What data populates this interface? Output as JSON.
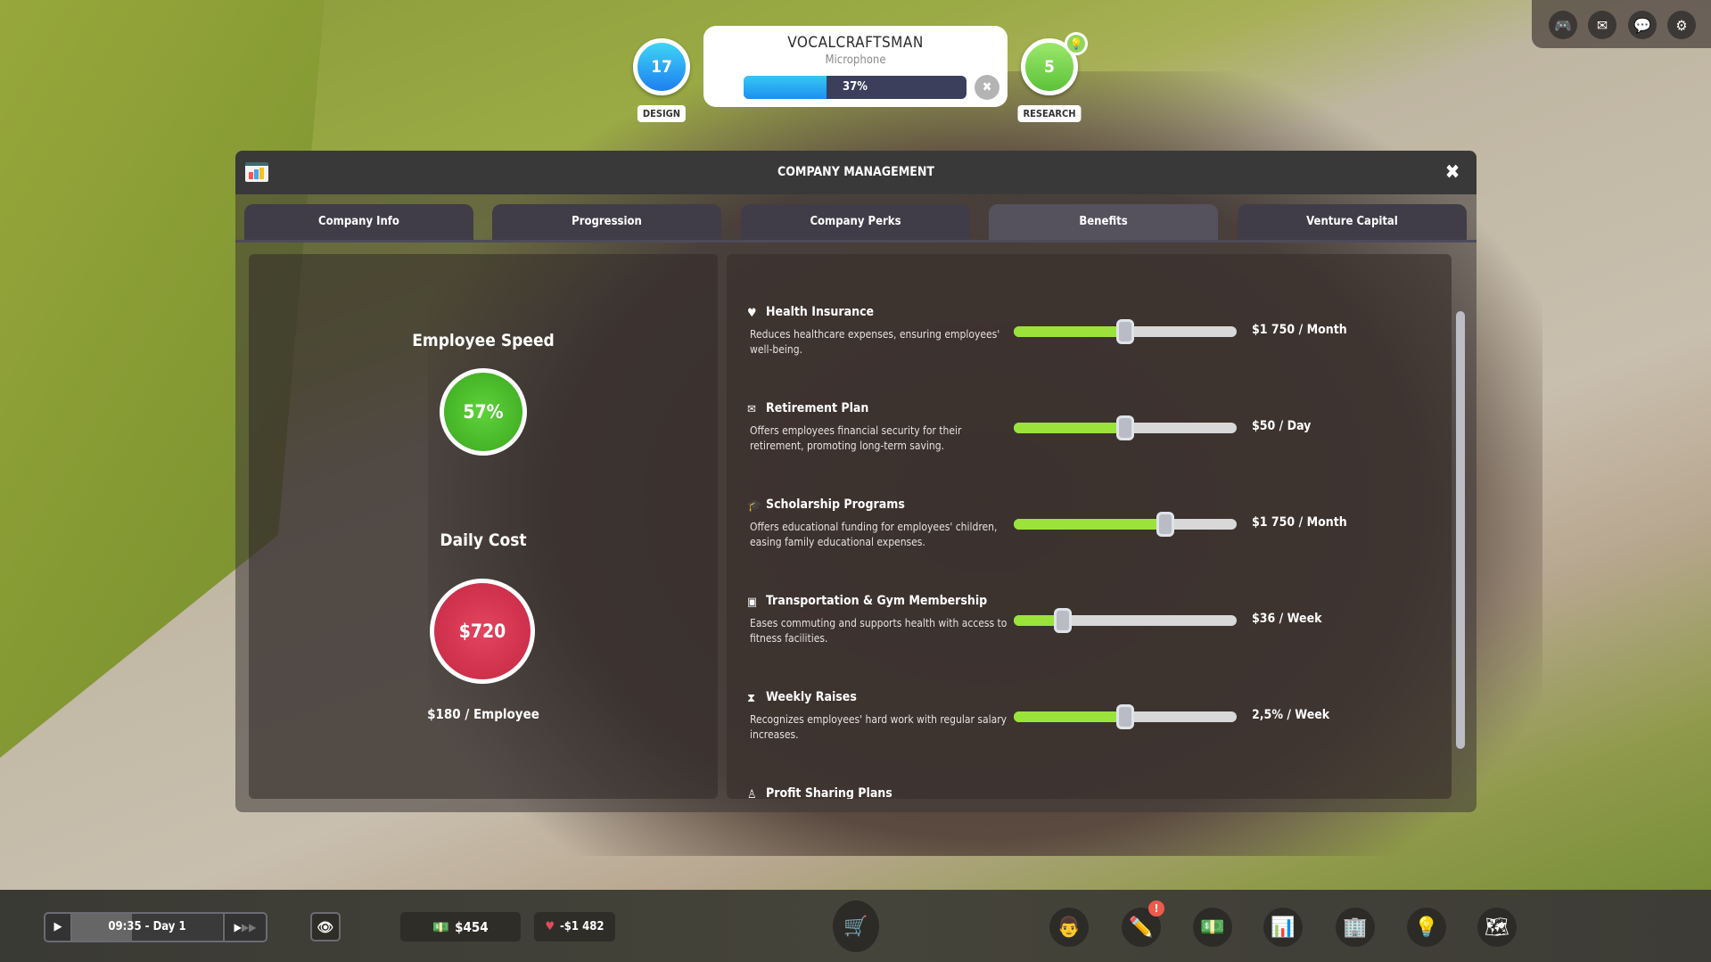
{
  "hud": {
    "design": {
      "value": "17",
      "label": "DESIGN",
      "color": "#27a8f0"
    },
    "research": {
      "value": "5",
      "label": "RESEARCH",
      "color": "#7ed957"
    },
    "project": {
      "name": "VOCALCRAFTSMAN",
      "type": "Microphone",
      "progress_percent": 37,
      "progress_label": "37%"
    },
    "top_right_icons": [
      "discord-icon",
      "mail-icon",
      "chat-notification-icon",
      "gear-icon"
    ]
  },
  "panel": {
    "title": "COMPANY MANAGEMENT",
    "tabs": [
      {
        "label": "Company Info"
      },
      {
        "label": "Progression"
      },
      {
        "label": "Company Perks"
      },
      {
        "label": "Benefits",
        "active": true
      },
      {
        "label": "Venture Capital"
      }
    ],
    "summary": {
      "speed_title": "Employee Speed",
      "speed_value": "57%",
      "cost_title": "Daily Cost",
      "cost_value": "$720",
      "per_employee": "$180 / Employee"
    },
    "benefits": [
      {
        "icon": "heart-icon",
        "title": "Health Insurance",
        "desc": "Reduces healthcare expenses, ensuring employees' well-being.",
        "level": 0.5,
        "value": "$1 750 / Month"
      },
      {
        "icon": "piggy-bank-icon",
        "title": "Retirement Plan",
        "desc": "Offers employees financial security for their retirement, promoting long-term saving.",
        "level": 0.5,
        "value": "$50 / Day"
      },
      {
        "icon": "graduation-cap-icon",
        "title": "Scholarship Programs",
        "desc": "Offers educational funding for employees' children, easing family educational expenses.",
        "level": 0.68,
        "value": "$1 750 / Month"
      },
      {
        "icon": "bus-icon",
        "title": "Transportation & Gym Membership",
        "desc": "Eases commuting and supports health with access to fitness facilities.",
        "level": 0.22,
        "value": "$36 / Week"
      },
      {
        "icon": "raise-icon",
        "title": "Weekly Raises",
        "desc": "Recognizes employees' hard work with regular salary increases.",
        "level": 0.5,
        "value": "2,5% / Week"
      },
      {
        "icon": "profit-icon",
        "title": "Profit Sharing Plans"
      }
    ]
  },
  "bottom": {
    "time": "09:35 - Day 1",
    "money": "$454",
    "expenses": "-$1 482",
    "icons": [
      "employee-icon",
      "design-pencil-icon",
      "finance-icon",
      "company-management-icon",
      "office-icon",
      "research-bulb-icon",
      "map-icon"
    ]
  },
  "colors": {
    "slider_fill": "#9be33a",
    "speed_ring": "#4cc22b",
    "cost_ring": "#d63350"
  }
}
